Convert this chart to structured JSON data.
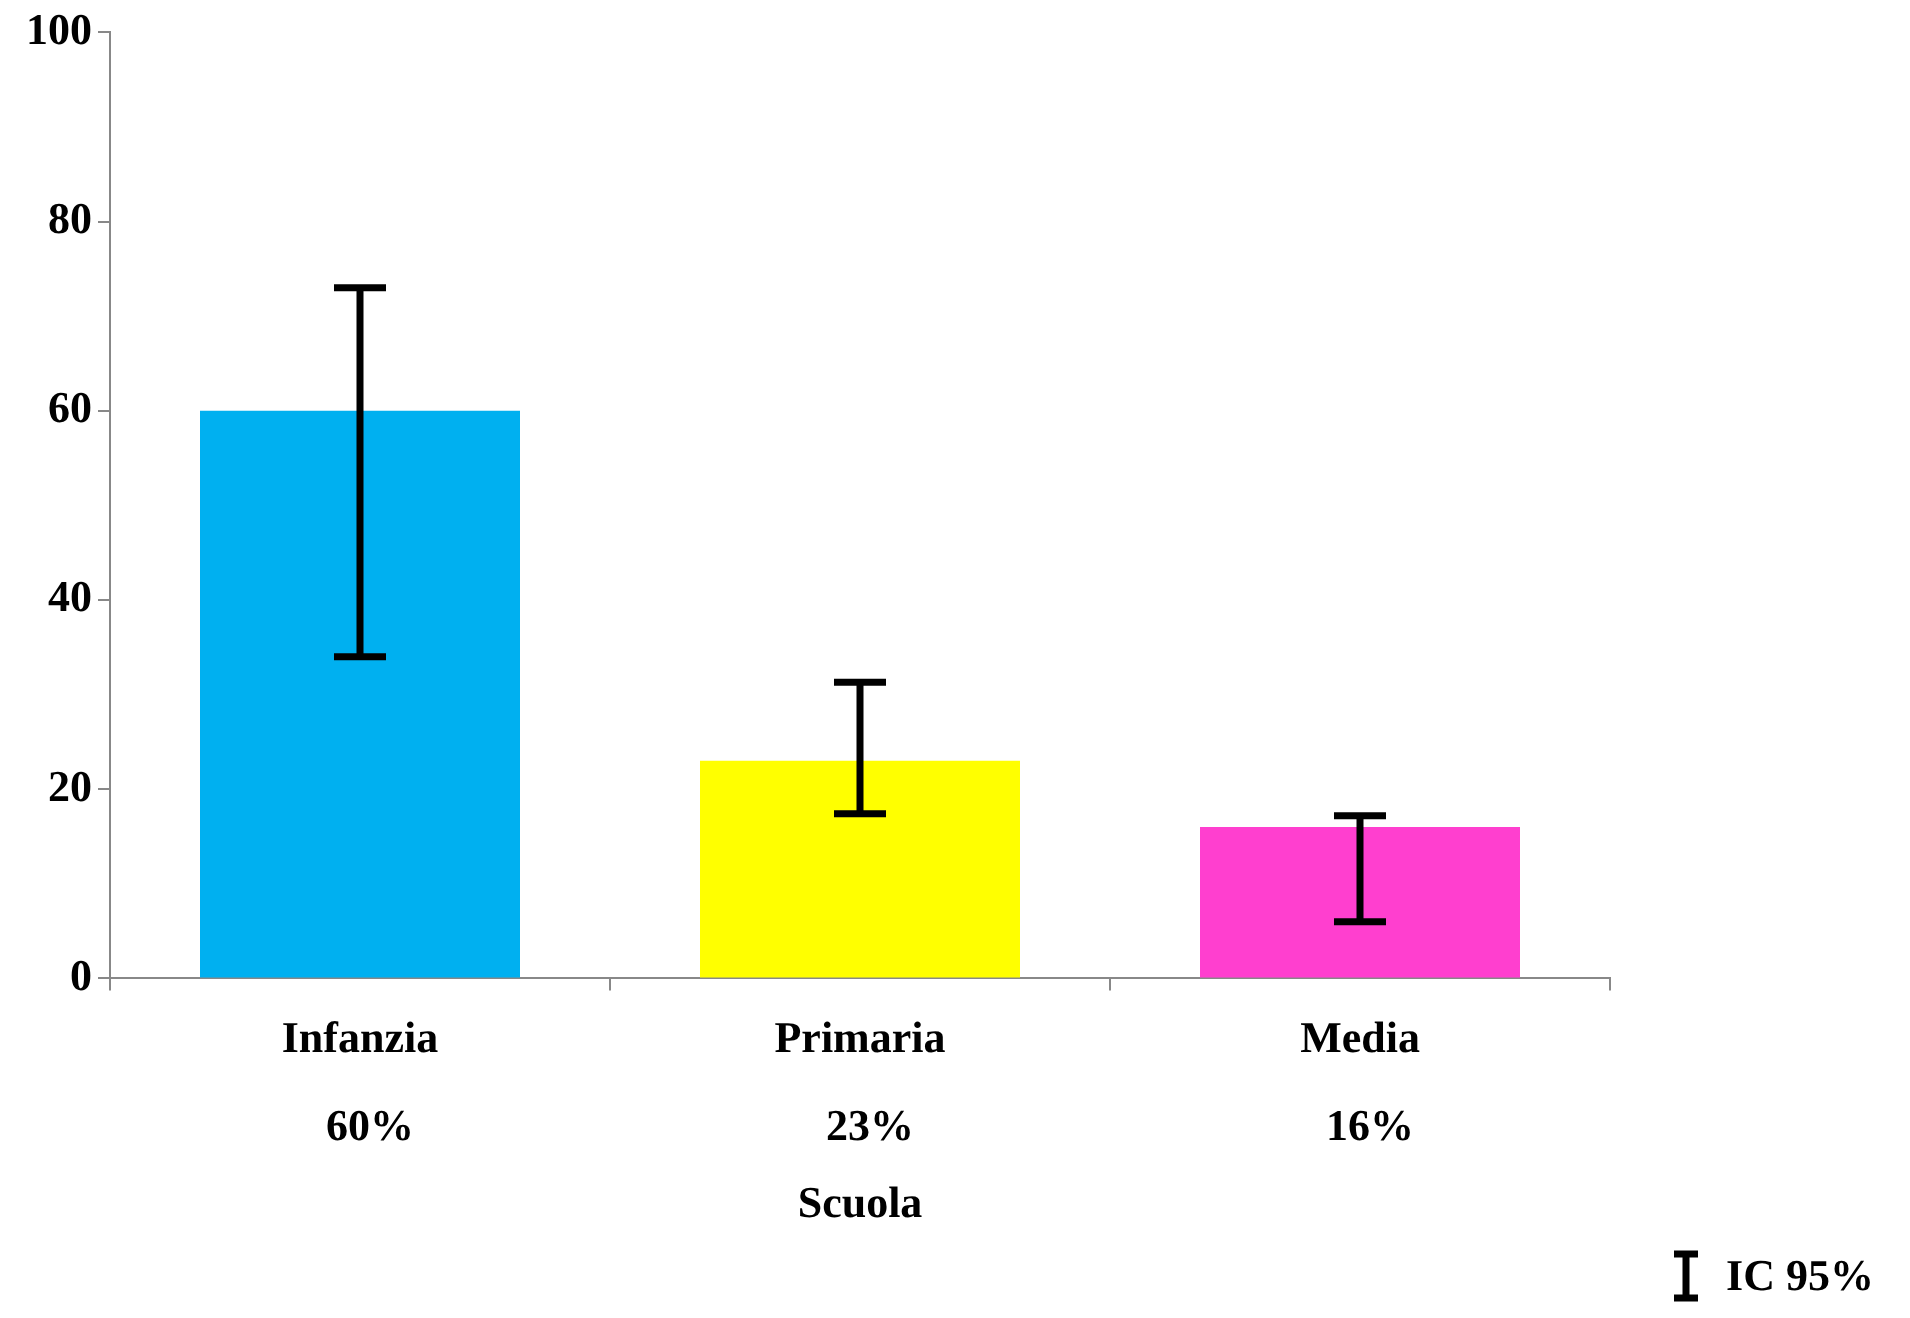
{
  "chart_data": {
    "type": "bar",
    "xlabel": "Scuola",
    "categories": [
      "Infanzia",
      "Primaria",
      "Media"
    ],
    "values": [
      60,
      23,
      16
    ],
    "colors": [
      "#00b0f0",
      "#ffff00",
      "#ff3fcf"
    ],
    "errors": [
      [
        34,
        73
      ],
      [
        17.4,
        31.3
      ],
      [
        6,
        17.2
      ]
    ],
    "value_labels": [
      "60%",
      "23%",
      "16%"
    ],
    "ylim": [
      0,
      100
    ],
    "yticks": [
      0,
      20,
      40,
      60,
      80,
      100
    ],
    "grid": false,
    "legend": false,
    "annotations": [
      "IC 95%"
    ]
  }
}
